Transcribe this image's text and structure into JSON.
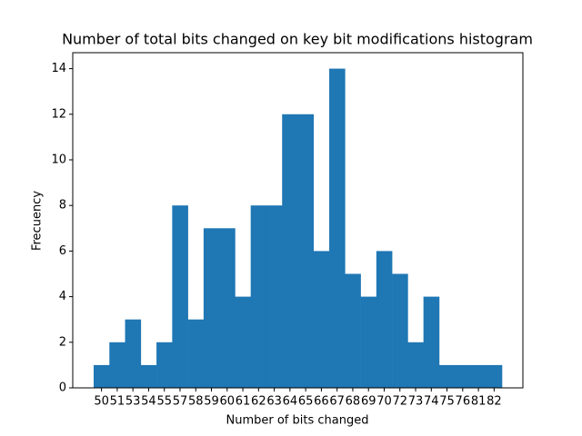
{
  "chart_data": {
    "type": "bar",
    "title": "Number of total bits changed on key bit modifications histogram",
    "x_label": "Number of bits changed",
    "y_label": "Frecuency",
    "categories": [
      "50",
      "51",
      "53",
      "54",
      "55",
      "57",
      "58",
      "59",
      "60",
      "61",
      "62",
      "63",
      "64",
      "65",
      "66",
      "67",
      "68",
      "69",
      "70",
      "72",
      "73",
      "74",
      "75",
      "76",
      "81",
      "82"
    ],
    "values": [
      1,
      2,
      3,
      1,
      2,
      8,
      3,
      7,
      7,
      4,
      8,
      8,
      12,
      12,
      6,
      14,
      5,
      4,
      6,
      5,
      2,
      4,
      1,
      1,
      1,
      1
    ],
    "color": "#1f77b4",
    "ylim": [
      0,
      14.7
    ],
    "yticks": [
      0,
      2,
      4,
      6,
      8,
      10,
      12,
      14
    ],
    "grid": false
  }
}
